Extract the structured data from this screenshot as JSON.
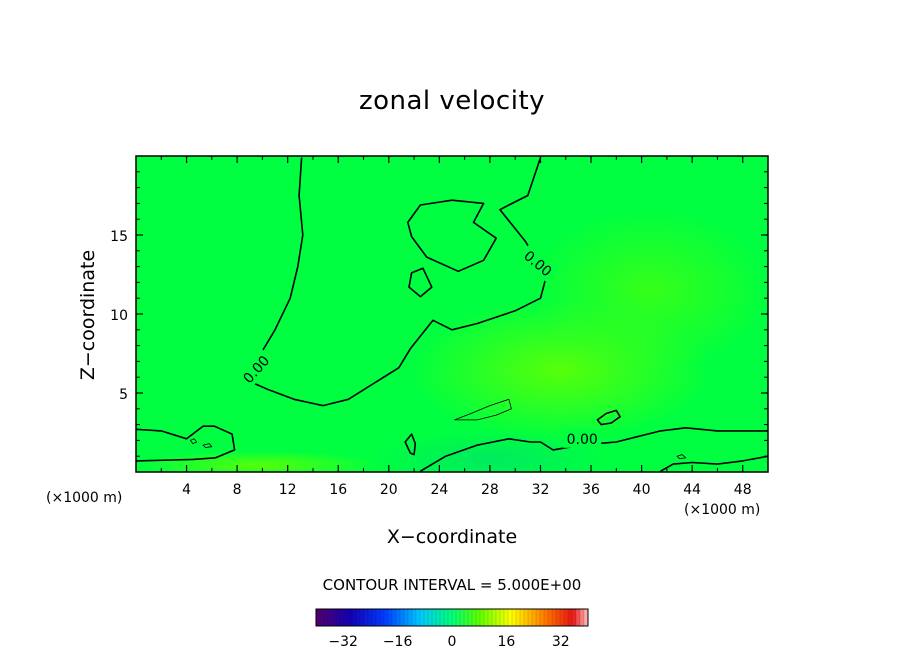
{
  "chart_data": {
    "type": "heatmap",
    "title": "zonal velocity",
    "xlabel": "X−coordinate",
    "ylabel": "Z−coordinate",
    "x_units": "(×1000 m)",
    "xlim": [
      0,
      50
    ],
    "ylim": [
      0,
      20
    ],
    "x_ticks": [
      4,
      8,
      12,
      16,
      20,
      24,
      28,
      32,
      36,
      40,
      44,
      48
    ],
    "x_tick_labels": [
      "4",
      "8",
      "12",
      "16",
      "20",
      "24",
      "28",
      "32",
      "36",
      "40",
      "44",
      "48"
    ],
    "y_ticks": [
      5,
      10,
      15
    ],
    "y_tick_labels": [
      "5",
      "10",
      "15"
    ],
    "contour_interval_text": "CONTOUR INTERVAL = 5.000E+00",
    "contour_labels": [
      {
        "text": "0.00",
        "x": 9.5,
        "y": 6.5,
        "angle": -48
      },
      {
        "text": "0.00",
        "x": 31.8,
        "y": 13.2,
        "angle": 40
      },
      {
        "text": "0.00",
        "x": 35.3,
        "y": 2.1,
        "angle": 0
      }
    ],
    "zero_contours": [
      {
        "points": [
          [
            13.1,
            19.9
          ],
          [
            12.9,
            17.5
          ],
          [
            13.2,
            15
          ],
          [
            12.8,
            13
          ],
          [
            12.2,
            11
          ],
          [
            11.0,
            9.0
          ],
          [
            9.8,
            7.4
          ],
          [
            8.8,
            5.8
          ],
          [
            10.5,
            5.2
          ],
          [
            12.5,
            4.6
          ],
          [
            14.8,
            4.2
          ],
          [
            16.8,
            4.6
          ],
          [
            18.8,
            5.6
          ],
          [
            20.8,
            6.6
          ],
          [
            21.7,
            7.8
          ],
          [
            23.5,
            9.6
          ],
          [
            25,
            9.0
          ],
          [
            27,
            9.4
          ],
          [
            30,
            10.2
          ],
          [
            32.0,
            11.0
          ],
          [
            32.5,
            12.5
          ],
          [
            30.8,
            14.6
          ],
          [
            28.8,
            16.6
          ],
          [
            29.5,
            16.9
          ],
          [
            31.0,
            17.5
          ],
          [
            32.0,
            19.9
          ]
        ],
        "closed": false
      },
      {
        "points": [
          [
            21.5,
            15.8
          ],
          [
            22.5,
            16.9
          ],
          [
            25.0,
            17.2
          ],
          [
            27.5,
            17.0
          ],
          [
            26.7,
            15.8
          ],
          [
            28.5,
            14.8
          ],
          [
            27.5,
            13.4
          ],
          [
            25.5,
            12.7
          ],
          [
            23.0,
            13.6
          ],
          [
            21.8,
            14.9
          ]
        ],
        "closed": true
      },
      {
        "points": [
          [
            21.8,
            12.6
          ],
          [
            22.7,
            12.9
          ],
          [
            23.4,
            11.7
          ],
          [
            22.5,
            11.1
          ],
          [
            21.6,
            11.7
          ]
        ],
        "closed": true
      },
      {
        "points": [
          [
            0,
            2.7
          ],
          [
            2.0,
            2.6
          ],
          [
            4.0,
            2.1
          ],
          [
            5.3,
            2.9
          ],
          [
            6.2,
            2.9
          ],
          [
            7.6,
            2.4
          ],
          [
            7.8,
            1.4
          ],
          [
            6.3,
            0.9
          ],
          [
            4.5,
            0.8
          ],
          [
            0,
            0.7
          ]
        ],
        "closed": false
      },
      {
        "points": [
          [
            21.3,
            1.9
          ],
          [
            21.8,
            2.4
          ],
          [
            22.1,
            1.8
          ],
          [
            22.0,
            1.1
          ],
          [
            21.7,
            1.2
          ]
        ],
        "closed": true
      },
      {
        "points": [
          [
            22.5,
            0.05
          ],
          [
            24.5,
            1.0
          ],
          [
            27,
            1.7
          ],
          [
            29.5,
            2.1
          ],
          [
            31.2,
            1.9
          ],
          [
            32.0,
            1.9
          ],
          [
            33.0,
            1.4
          ],
          [
            34.5,
            1.6
          ],
          [
            36.5,
            1.8
          ],
          [
            38.0,
            1.9
          ],
          [
            39.5,
            2.2
          ],
          [
            41.5,
            2.6
          ],
          [
            43.5,
            2.8
          ],
          [
            46,
            2.6
          ],
          [
            50,
            2.6
          ]
        ],
        "closed": false
      },
      {
        "points": [
          [
            36.5,
            3.3
          ],
          [
            37.2,
            3.7
          ],
          [
            38.0,
            3.9
          ],
          [
            38.3,
            3.5
          ],
          [
            37.6,
            3.1
          ],
          [
            36.8,
            3.0
          ]
        ],
        "closed": true
      },
      {
        "points": [
          [
            41.5,
            0.05
          ],
          [
            42.5,
            0.5
          ],
          [
            44,
            0.6
          ],
          [
            46,
            0.5
          ],
          [
            48,
            0.7
          ],
          [
            50,
            1.0
          ]
        ],
        "closed": false
      }
    ],
    "other_contours": [
      {
        "points": [
          [
            25.2,
            3.3
          ],
          [
            26.5,
            3.7
          ],
          [
            28,
            4.2
          ],
          [
            29.5,
            4.6
          ],
          [
            29.7,
            4.0
          ],
          [
            28.5,
            3.6
          ],
          [
            27.0,
            3.3
          ]
        ],
        "closed": true
      },
      {
        "points": [
          [
            4.3,
            2.0
          ],
          [
            4.6,
            2.1
          ],
          [
            4.8,
            1.9
          ],
          [
            4.5,
            1.8
          ]
        ],
        "closed": true
      },
      {
        "points": [
          [
            5.3,
            1.7
          ],
          [
            5.8,
            1.8
          ],
          [
            6.0,
            1.6
          ],
          [
            5.5,
            1.55
          ]
        ],
        "closed": true
      },
      {
        "points": [
          [
            42.8,
            1.0
          ],
          [
            43.2,
            1.1
          ],
          [
            43.5,
            0.9
          ],
          [
            43.0,
            0.85
          ]
        ],
        "closed": true
      }
    ],
    "colorbar": {
      "min": -40,
      "max": 40,
      "tick_values": [
        -32,
        -16,
        0,
        16,
        32
      ],
      "tick_labels": [
        "−32",
        "−16",
        "0",
        "16",
        "32"
      ]
    },
    "colors": {
      "field_base": "#00ff40",
      "frame": "#000000"
    }
  }
}
